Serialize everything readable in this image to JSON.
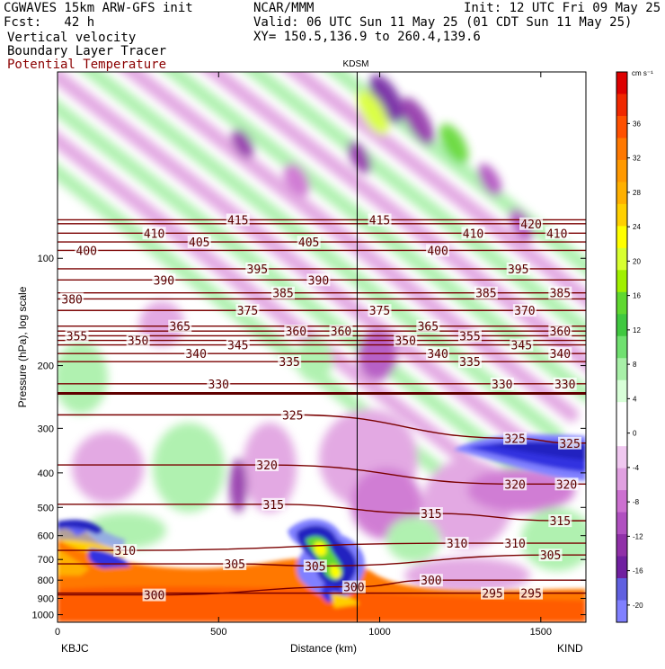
{
  "header": {
    "model": "CGWAVES 15km ARW-GFS init",
    "fcst": "Fcst:   42 h",
    "org": "NCAR/MMM",
    "init": "Init: 12 UTC Fri 09 May 25",
    "valid": "Valid: 06 UTC Sun 11 May 25 (01 CDT Sun 11 May 25)",
    "xy": "XY= 150.5,136.9 to 260.4,139.6",
    "fields": [
      "Vertical velocity",
      "Boundary Layer Tracer",
      "Potential Temperature"
    ],
    "field_colors": [
      "#000000",
      "#000000",
      "#8b0000"
    ]
  },
  "chart_data": {
    "type": "heatmap",
    "station_top": "KDSM",
    "station_left": "KBJC",
    "station_right": "KIND",
    "xlabel": "Distance (km)",
    "ylabel": "Pressure (hPa), log scale",
    "x_ticks": [
      "0",
      "500",
      "1000",
      "1500"
    ],
    "x_tick_values": [
      0,
      500,
      1000,
      1500
    ],
    "xlim": [
      0,
      1640
    ],
    "y_ticks": [
      "100",
      "200",
      "300",
      "400",
      "500",
      "600",
      "700",
      "800",
      "900",
      "1000"
    ],
    "y_tick_values": [
      100,
      200,
      300,
      400,
      500,
      600,
      700,
      800,
      900,
      1000
    ],
    "ylim": [
      30,
      1050
    ],
    "y_scale": "log",
    "kdsm_distance": 930,
    "colorbar": {
      "unit": "cm s⁻¹",
      "labels": [
        "36",
        "32",
        "28",
        "24",
        "20",
        "16",
        "12",
        "8",
        "4",
        "0",
        "-4",
        "-8",
        "-12",
        "-16",
        "-20"
      ],
      "colors": [
        "#dd0000",
        "#f02800",
        "#ff5000",
        "#ff7800",
        "#ff9900",
        "#ffb000",
        "#ffd000",
        "#ffff00",
        "#d8ff30",
        "#a0f000",
        "#60d830",
        "#40c840",
        "#70e070",
        "#a8f0a8",
        "#d8ffd8",
        "#ffffff",
        "#ffffff",
        "#f0c8f0",
        "#e0a0e0",
        "#cc70d0",
        "#b050c0",
        "#9030a8",
        "#7020a0",
        "#6060e0",
        "#8080ff"
      ]
    },
    "isentropes": [
      {
        "theta": "420",
        "label_x": [
          1470
        ],
        "label_p": [
          80
        ]
      },
      {
        "theta": "415",
        "label_x": [
          560,
          1000
        ],
        "label_p": [
          78,
          78
        ]
      },
      {
        "theta": "410",
        "label_x": [
          300,
          1290,
          1550
        ],
        "label_p": [
          85,
          85,
          85
        ]
      },
      {
        "theta": "405",
        "label_x": [
          440,
          780
        ],
        "label_p": [
          90,
          90
        ]
      },
      {
        "theta": "400",
        "label_x": [
          90,
          1180
        ],
        "label_p": [
          95,
          95
        ]
      },
      {
        "theta": "395",
        "label_x": [
          620,
          1430
        ],
        "label_p": [
          107,
          107
        ]
      },
      {
        "theta": "390",
        "label_x": [
          330,
          810
        ],
        "label_p": [
          115,
          115
        ]
      },
      {
        "theta": "385",
        "label_x": [
          700,
          1330,
          1560
        ],
        "label_p": [
          125,
          125,
          125
        ]
      },
      {
        "theta": "380",
        "label_x": [
          45
        ],
        "label_p": [
          130
        ]
      },
      {
        "theta": "375",
        "label_x": [
          590,
          1000
        ],
        "label_p": [
          140,
          140
        ]
      },
      {
        "theta": "370",
        "label_x": [
          1450
        ],
        "label_p": [
          140
        ]
      },
      {
        "theta": "365",
        "label_x": [
          380,
          1150
        ],
        "label_p": [
          155,
          155
        ]
      },
      {
        "theta": "360",
        "label_x": [
          740,
          880,
          1560
        ],
        "label_p": [
          160,
          160,
          160
        ]
      },
      {
        "theta": "355",
        "label_x": [
          60,
          1280
        ],
        "label_p": [
          165,
          165
        ]
      },
      {
        "theta": "350",
        "label_x": [
          250,
          1080
        ],
        "label_p": [
          170,
          170
        ]
      },
      {
        "theta": "345",
        "label_x": [
          560,
          1440
        ],
        "label_p": [
          175,
          175
        ]
      },
      {
        "theta": "340",
        "label_x": [
          430,
          1180,
          1560
        ],
        "label_p": [
          185,
          185,
          185
        ]
      },
      {
        "theta": "335",
        "label_x": [
          720,
          1280
        ],
        "label_p": [
          195,
          195
        ]
      },
      {
        "theta": "330",
        "label_x": [
          500,
          1380,
          1575
        ],
        "label_p": [
          225,
          225,
          225
        ]
      },
      {
        "theta": "325",
        "label_x": [
          730,
          1420,
          1590
        ],
        "label_p": [
          275,
          320,
          330
        ]
      },
      {
        "theta": "320",
        "label_x": [
          650,
          1420,
          1580
        ],
        "label_p": [
          380,
          430,
          430
        ]
      },
      {
        "theta": "315",
        "label_x": [
          670,
          1160,
          1560
        ],
        "label_p": [
          490,
          520,
          545
        ]
      },
      {
        "theta": "310",
        "label_x": [
          210,
          1240,
          1420
        ],
        "label_p": [
          660,
          630,
          630
        ]
      },
      {
        "theta": "305",
        "label_x": [
          550,
          800,
          1530
        ],
        "label_p": [
          720,
          730,
          680
        ]
      },
      {
        "theta": "300",
        "label_x": [
          300,
          920,
          1160
        ],
        "label_p": [
          880,
          835,
          800
        ]
      },
      {
        "theta": "295",
        "label_x": [
          1350,
          1470
        ],
        "label_p": [
          870,
          870
        ]
      }
    ]
  }
}
